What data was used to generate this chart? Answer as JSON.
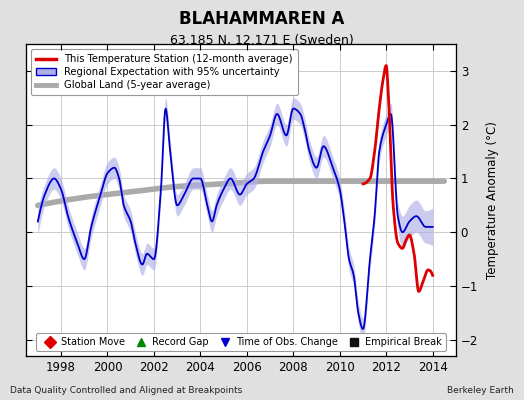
{
  "title": "BLAHAMMAREN A",
  "subtitle": "63.185 N, 12.171 E (Sweden)",
  "ylabel": "Temperature Anomaly (°C)",
  "xlabel_bottom": "Data Quality Controlled and Aligned at Breakpoints",
  "credit": "Berkeley Earth",
  "ylim": [
    -2.3,
    3.5
  ],
  "xlim": [
    1996.5,
    2015.0
  ],
  "yticks": [
    -2,
    -1,
    0,
    1,
    2,
    3
  ],
  "xticks": [
    1998,
    2000,
    2002,
    2004,
    2006,
    2008,
    2010,
    2012,
    2014
  ],
  "bg_color": "#e0e0e0",
  "plot_bg_color": "#ffffff",
  "grid_color": "#cccccc",
  "red_line_color": "#dd0000",
  "blue_line_color": "#0000cc",
  "blue_fill_color": "#b0b0e8",
  "gray_line_color": "#aaaaaa",
  "legend1_labels": [
    "This Temperature Station (12-month average)",
    "Regional Expectation with 95% uncertainty",
    "Global Land (5-year average)"
  ],
  "legend2_labels": [
    "Station Move",
    "Record Gap",
    "Time of Obs. Change",
    "Empirical Break"
  ],
  "legend2_colors": [
    "#dd0000",
    "#008800",
    "#0000cc",
    "#111111"
  ],
  "blue_x": [
    1997.0,
    1997.3,
    1997.7,
    1998.0,
    1998.3,
    1998.7,
    1999.0,
    1999.3,
    1999.7,
    2000.0,
    2000.3,
    2000.5,
    2000.7,
    2001.0,
    2001.2,
    2001.5,
    2001.7,
    2002.0,
    2002.3,
    2002.5,
    2002.7,
    2003.0,
    2003.3,
    2003.7,
    2004.0,
    2004.3,
    2004.5,
    2004.7,
    2005.0,
    2005.3,
    2005.7,
    2006.0,
    2006.3,
    2006.7,
    2007.0,
    2007.3,
    2007.7,
    2008.0,
    2008.3,
    2008.5,
    2008.7,
    2009.0,
    2009.3,
    2009.7,
    2010.0,
    2010.2,
    2010.4,
    2010.6,
    2010.8,
    2011.0,
    2011.3,
    2011.5,
    2011.7,
    2012.0,
    2012.2,
    2012.5,
    2012.7,
    2013.0,
    2013.3,
    2013.7,
    2014.0
  ],
  "blue_y": [
    0.2,
    0.7,
    1.0,
    0.8,
    0.3,
    -0.2,
    -0.5,
    0.1,
    0.7,
    1.1,
    1.2,
    1.0,
    0.5,
    0.2,
    -0.2,
    -0.6,
    -0.4,
    -0.5,
    0.8,
    2.3,
    1.5,
    0.5,
    0.7,
    1.0,
    1.0,
    0.5,
    0.2,
    0.5,
    0.8,
    1.0,
    0.7,
    0.9,
    1.0,
    1.5,
    1.8,
    2.2,
    1.8,
    2.3,
    2.2,
    1.9,
    1.5,
    1.2,
    1.6,
    1.2,
    0.8,
    0.2,
    -0.5,
    -0.8,
    -1.5,
    -1.8,
    -0.5,
    0.3,
    1.5,
    2.0,
    2.2,
    0.3,
    0.0,
    0.2,
    0.3,
    0.1,
    0.1
  ],
  "blue_unc": [
    0.25,
    0.2,
    0.2,
    0.2,
    0.2,
    0.2,
    0.2,
    0.2,
    0.2,
    0.2,
    0.2,
    0.2,
    0.2,
    0.2,
    0.2,
    0.2,
    0.2,
    0.2,
    0.2,
    0.2,
    0.2,
    0.2,
    0.2,
    0.2,
    0.2,
    0.2,
    0.2,
    0.2,
    0.2,
    0.2,
    0.2,
    0.2,
    0.2,
    0.2,
    0.2,
    0.2,
    0.2,
    0.2,
    0.2,
    0.2,
    0.2,
    0.2,
    0.2,
    0.2,
    0.2,
    0.2,
    0.2,
    0.2,
    0.2,
    0.2,
    0.2,
    0.2,
    0.2,
    0.2,
    0.2,
    0.25,
    0.3,
    0.3,
    0.3,
    0.3,
    0.35
  ],
  "red_x": [
    2011.0,
    2011.3,
    2011.5,
    2011.7,
    2011.85,
    2012.0,
    2012.1,
    2012.3,
    2012.5,
    2012.7,
    2012.85,
    2013.0,
    2013.2,
    2013.4,
    2013.6,
    2013.8,
    2014.0
  ],
  "red_y": [
    0.9,
    1.0,
    1.5,
    2.3,
    2.8,
    3.1,
    2.5,
    0.5,
    -0.2,
    -0.3,
    -0.15,
    -0.05,
    -0.4,
    -1.1,
    -0.9,
    -0.7,
    -0.8
  ],
  "gray_x": [
    1997.0,
    1999.0,
    2001.0,
    2003.0,
    2005.0,
    2007.0,
    2009.0,
    2011.0,
    2013.0,
    2014.5
  ],
  "gray_y": [
    0.5,
    0.65,
    0.75,
    0.85,
    0.9,
    0.95,
    0.95,
    0.95,
    0.95,
    0.95
  ]
}
